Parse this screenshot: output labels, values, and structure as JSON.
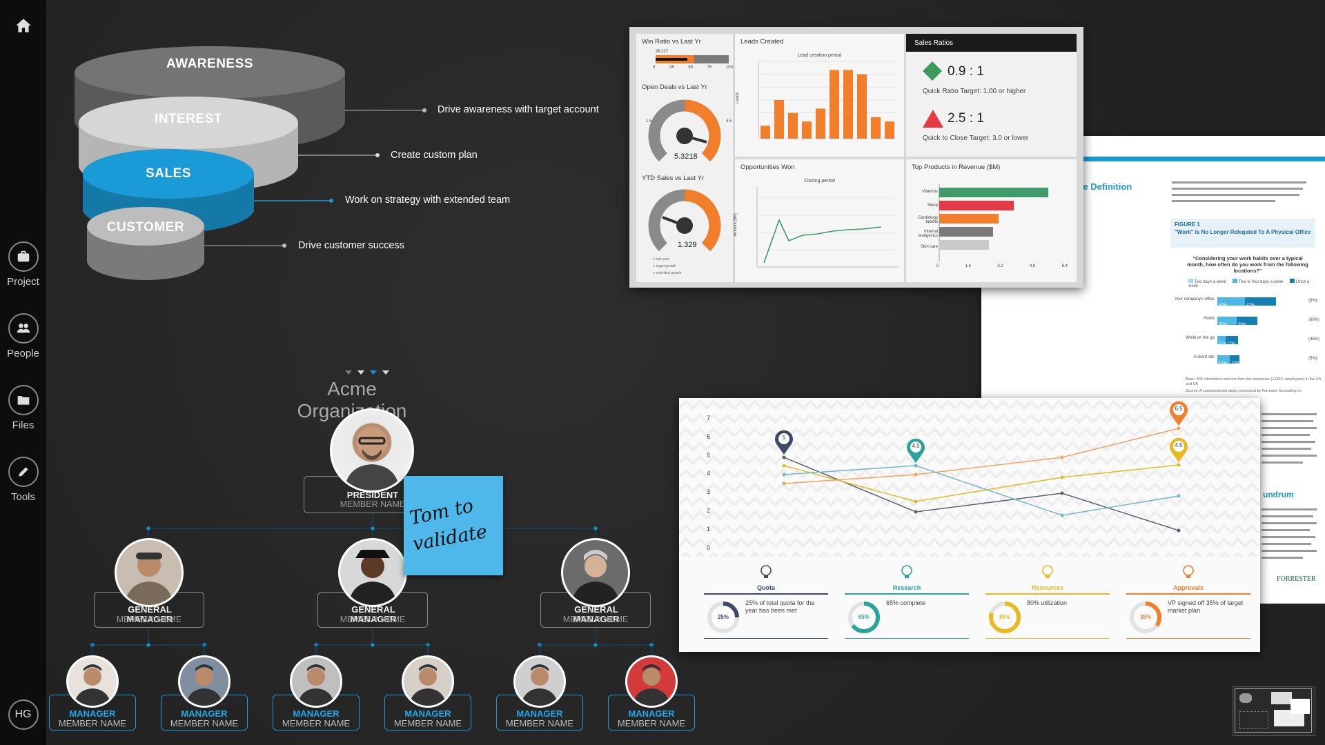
{
  "sidebar": {
    "items": [
      {
        "label": "Project",
        "icon": "briefcase-icon"
      },
      {
        "label": "People",
        "icon": "people-icon"
      },
      {
        "label": "Files",
        "icon": "folder-icon"
      },
      {
        "label": "Tools",
        "icon": "pencil-icon"
      }
    ],
    "home_icon": "home-icon",
    "user_initials": "HG"
  },
  "funnel": {
    "stages": [
      "AWARENESS",
      "INTEREST",
      "SALES",
      "CUSTOMER"
    ],
    "notes": [
      "Drive awareness with target account",
      "Create custom plan",
      "Work on strategy with extended team",
      "Drive customer success"
    ],
    "colors": {
      "awareness": "#6f6f6f",
      "interest": "#d2d2d2",
      "sales": "#1a9ad6",
      "customer": "#bdbdbd"
    }
  },
  "dashboard": {
    "win_ratio": {
      "title": "Win Ratio vs Last Yr",
      "value_label": "26.117",
      "ticks": [
        "0",
        "25",
        "50",
        "75",
        "100"
      ]
    },
    "open_deals": {
      "title": "Open Deals vs Last Yr",
      "value": "5.3218",
      "scale": [
        "1.5",
        "4.5",
        "0",
        "6"
      ]
    },
    "ytd_sales": {
      "title": "YTD Sales vs Last Yr",
      "value": "1.329",
      "scale": [
        "1.5",
        "4.5",
        "0",
        "6"
      ],
      "legend": [
        "last year",
        "target growth",
        "extended growth"
      ]
    },
    "leads": {
      "title": "Leads Created",
      "subtitle": "Lead creation period",
      "ylabel": "Leads"
    },
    "sales_ratios": {
      "title": "Sales Ratios",
      "quick_ratio": "0.9 : 1",
      "quick_ratio_target": "Quick Ratio Target: 1,00 or higher",
      "close_ratio": "2.5 : 1",
      "close_ratio_target": "Quick to Close Target: 3.0 or lower"
    },
    "opps_won": {
      "title": "Opportunities Won",
      "subtitle": "Closing period",
      "ylabel": "Amount ($K)"
    },
    "top_products": {
      "title": "Top Products in Revenue ($M)",
      "items": [
        "Vitamins",
        "Sleep",
        "Cardiology tablets",
        "Internal analgesics",
        "Skin care"
      ],
      "axis": [
        "0",
        "1.6",
        "3.2",
        "4.8",
        "6.4"
      ]
    }
  },
  "report": {
    "heading": "d The Definition",
    "figure_label": "FIGURE 1",
    "figure_title": "\"Work\" Is No Longer Relegated To A Physical Office",
    "question": "\"Considering your work habits over a typical month, how often do you work from the following locations?\"",
    "legend": [
      "Two days a week",
      "Two to four days a week",
      "Once a week"
    ],
    "rows": [
      "Your company's office",
      "Home",
      "While on the go",
      "A client site"
    ],
    "bars": [
      [
        "42%",
        "42%"
      ],
      [
        "30%",
        "30%"
      ],
      [
        "11%",
        "17%"
      ],
      [
        "17%",
        "13%"
      ]
    ],
    "right_values": [
      "(8%)",
      "(60%)",
      "(45%)",
      "(5%)"
    ],
    "subheading": "undrum",
    "brand": "FORRESTER",
    "source": "Base: 305 information workers from the enterprise (1,000+ employees) in the US and UK",
    "source2": "Source: A commissioned study conducted by Forrester Consulting on"
  },
  "infographic": {
    "y_ticks": [
      "7",
      "6",
      "5",
      "4",
      "3",
      "2",
      "1",
      "0"
    ],
    "pins": [
      "5",
      "4.5",
      "6.5",
      "4.5"
    ],
    "kpis": [
      {
        "name": "Quota",
        "percent": "25%",
        "text": "25% of total quota for the year has been met",
        "color": "#3d4a66",
        "value": 0.25
      },
      {
        "name": "Research",
        "percent": "65%",
        "text": "65% complete",
        "color": "#2aa39a",
        "value": 0.65
      },
      {
        "name": "Resources",
        "percent": "80%",
        "text": "80% utilization",
        "color": "#e8b923",
        "value": 0.8
      },
      {
        "name": "Approvals",
        "percent": "35%",
        "text": "VP signed off 35% of target market plan",
        "color": "#f07e2b",
        "value": 0.35
      }
    ]
  },
  "sticky_note": {
    "text_line1": "Tom to",
    "text_line2": "validate",
    "color": "#4eb8ea"
  },
  "org": {
    "title": "Acme Organization",
    "president": {
      "title": "PRESIDENT",
      "name": "MEMBER NAME"
    },
    "general_managers": [
      {
        "title": "GENERAL MANAGER",
        "name": "MEMBER NAME"
      },
      {
        "title": "GENERAL MANAGER",
        "name": "MEMBER NAME"
      },
      {
        "title": "GENERAL MANAGER",
        "name": "MEMBER NAME"
      }
    ],
    "managers": [
      {
        "title": "MANAGER",
        "name": "MEMBER NAME"
      },
      {
        "title": "MANAGER",
        "name": "MEMBER NAME"
      },
      {
        "title": "MANAGER",
        "name": "MEMBER NAME"
      },
      {
        "title": "MANAGER",
        "name": "MEMBER NAME"
      },
      {
        "title": "MANAGER",
        "name": "MEMBER NAME"
      },
      {
        "title": "MANAGER",
        "name": "MEMBER NAME"
      }
    ]
  },
  "accent_color": "#1a9ad6"
}
